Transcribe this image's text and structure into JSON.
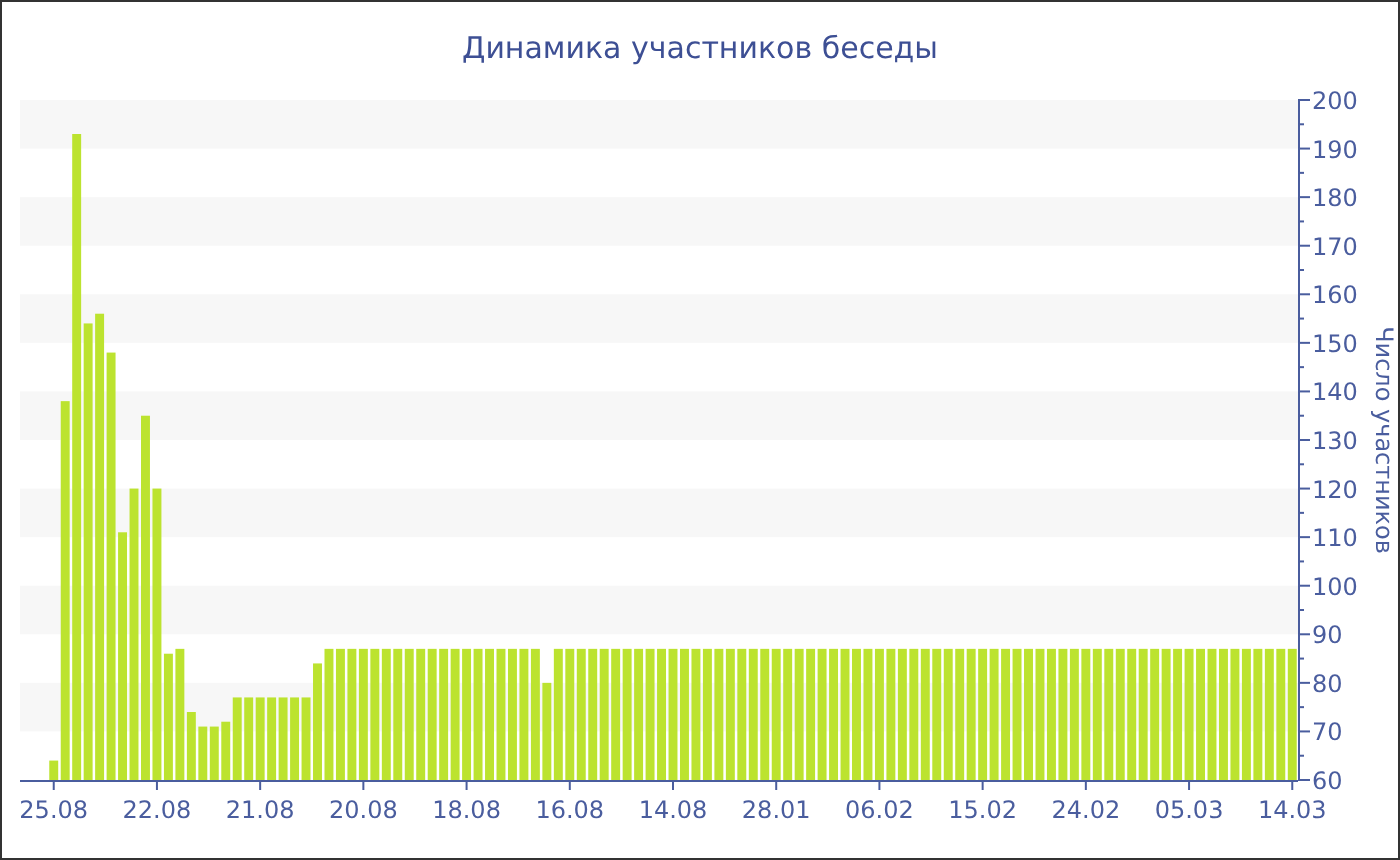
{
  "chart_data": {
    "type": "bar",
    "title": "Динамика участников беседы",
    "y2label": "Число участников",
    "categories": [
      "25.08",
      null,
      null,
      null,
      null,
      null,
      null,
      null,
      null,
      "22.08",
      null,
      null,
      null,
      null,
      null,
      null,
      null,
      null,
      "21.08",
      null,
      null,
      null,
      null,
      null,
      null,
      null,
      null,
      "20.08",
      null,
      null,
      null,
      null,
      null,
      null,
      null,
      null,
      "18.08",
      null,
      null,
      null,
      null,
      null,
      null,
      null,
      null,
      "16.08",
      null,
      null,
      null,
      null,
      null,
      null,
      null,
      null,
      "14.08",
      null,
      null,
      null,
      null,
      null,
      null,
      null,
      null,
      "28.01",
      null,
      null,
      null,
      null,
      null,
      null,
      null,
      null,
      "06.02",
      null,
      null,
      null,
      null,
      null,
      null,
      null,
      null,
      "15.02",
      null,
      null,
      null,
      null,
      null,
      null,
      null,
      null,
      "24.02",
      null,
      null,
      null,
      null,
      null,
      null,
      null,
      null,
      "05.03",
      null,
      null,
      null,
      null,
      null,
      null,
      null,
      null,
      "14.03"
    ],
    "series": [
      {
        "axis": "y2",
        "color": "#bce32f",
        "values": [
          64,
          138,
          193,
          154,
          156,
          148,
          111,
          120,
          135,
          120,
          86,
          87,
          74,
          71,
          71,
          72,
          77,
          77,
          77,
          77,
          77,
          77,
          77,
          84,
          87,
          87,
          87,
          87,
          87,
          87,
          87,
          87,
          87,
          87,
          87,
          87,
          87,
          87,
          87,
          87,
          87,
          87,
          87,
          80,
          87,
          87,
          87,
          87,
          87,
          87,
          87,
          87,
          87,
          87,
          87,
          87,
          87,
          87,
          87,
          87,
          87,
          87,
          87,
          87,
          87,
          87,
          87,
          87,
          87,
          87,
          87,
          87,
          87,
          87,
          87,
          87,
          87,
          87,
          87,
          87,
          87,
          87,
          87,
          87,
          87,
          87,
          87,
          87,
          87,
          87,
          87,
          87,
          87,
          87,
          87,
          87,
          87,
          87,
          87,
          87,
          87,
          87,
          87,
          87,
          87,
          87,
          87,
          87,
          87
        ]
      }
    ],
    "y2lim": [
      60,
      200
    ],
    "y2ticks": [
      60,
      {
        "value": 65,
        "label": null
      },
      70,
      {
        "value": 75,
        "label": null
      },
      80,
      {
        "value": 85,
        "label": null
      },
      90,
      {
        "value": 95,
        "label": null
      },
      100,
      {
        "value": 105,
        "label": null
      },
      110,
      {
        "value": 115,
        "label": null
      },
      120,
      {
        "value": 125,
        "label": null
      },
      130,
      {
        "value": 135,
        "label": null
      },
      140,
      {
        "value": 145,
        "label": null
      },
      150,
      {
        "value": 155,
        "label": null
      },
      160,
      {
        "value": 165,
        "label": null
      },
      170,
      {
        "value": 175,
        "label": null
      },
      180,
      {
        "value": 185,
        "label": null
      },
      190,
      {
        "value": 195,
        "label": null
      },
      200
    ],
    "bands": [
      {
        "axis": "y2",
        "from": 190,
        "to": 200,
        "color": "#f7f7f7"
      },
      {
        "axis": "y2",
        "from": 170,
        "to": 180,
        "color": "#f7f7f7"
      },
      {
        "axis": "y2",
        "from": 150,
        "to": 160,
        "color": "#f7f7f7"
      },
      {
        "axis": "y2",
        "from": 130,
        "to": 140,
        "color": "#f7f7f7"
      },
      {
        "axis": "y2",
        "from": 110,
        "to": 120,
        "color": "#f7f7f7"
      },
      {
        "axis": "y2",
        "from": 90,
        "to": 100,
        "color": "#f7f7f7"
      },
      {
        "axis": "y2",
        "from": 70,
        "to": 80,
        "color": "#f7f7f7"
      }
    ]
  }
}
